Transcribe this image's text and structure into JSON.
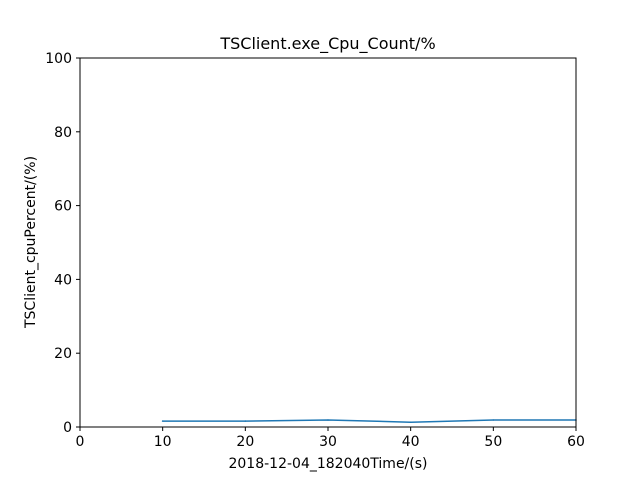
{
  "chart_data": {
    "type": "line",
    "title": "TSClient.exe_Cpu_Count/%",
    "xlabel": "2018-12-04_182040Time/(s)",
    "ylabel": "TSClient_cpuPercent/(%)",
    "xlim": [
      0,
      60
    ],
    "ylim": [
      0,
      100
    ],
    "xticks": [
      0,
      10,
      20,
      30,
      40,
      50,
      60
    ],
    "yticks": [
      0,
      20,
      40,
      60,
      80,
      100
    ],
    "grid": false,
    "series": [
      {
        "color": "#1f77b4",
        "x": [
          10,
          20,
          30,
          40,
          50,
          60
        ],
        "y": [
          1.6,
          1.6,
          1.9,
          1.3,
          1.9,
          1.9
        ]
      }
    ]
  }
}
